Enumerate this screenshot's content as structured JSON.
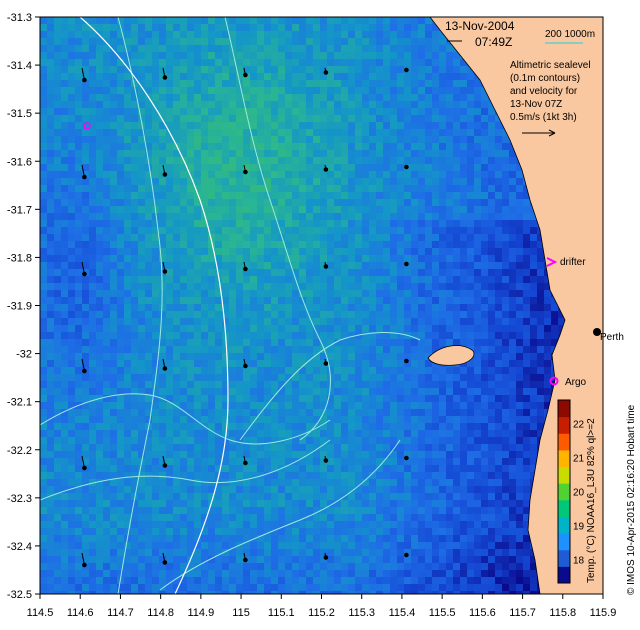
{
  "header": {
    "date": "13-Nov-2004",
    "time": "07:49Z",
    "scale_label": "200  1000m"
  },
  "legend": {
    "lines": [
      "Altimetric sealevel",
      "(0.1m contours)",
      "and velocity for",
      "13-Nov 07Z",
      "0.5m/s (1kt 3h)"
    ]
  },
  "places": {
    "drifter": "drifter",
    "perth": "Perth",
    "argo": "Argo"
  },
  "colorbar": {
    "label": "Temp. (°C) NOAA16_L3U 82% ql>=2",
    "ticks": [
      "18",
      "19",
      "20",
      "21",
      "22"
    ],
    "colors": [
      "#0a0a8c",
      "#1e5cd6",
      "#1e90ff",
      "#00b4c8",
      "#00c878",
      "#50d232",
      "#c8dc00",
      "#ffb400",
      "#ff5a00",
      "#c81e00",
      "#8c0a00"
    ]
  },
  "credit": "© IMOS 10-Apr-2015 02:16:20 Hobart time",
  "axes": {
    "x_ticks": [
      "114.5",
      "114.6",
      "114.7",
      "114.8",
      "114.9",
      "115",
      "115.1",
      "115.2",
      "115.3",
      "115.4",
      "115.5",
      "115.6",
      "115.7",
      "115.8",
      "115.9"
    ],
    "y_ticks": [
      "-31.3",
      "-31.4",
      "-31.5",
      "-31.6",
      "-31.7",
      "-31.8",
      "-31.9",
      "-32",
      "-32.1",
      "-32.2",
      "-32.3",
      "-32.4",
      "-32.5"
    ],
    "x_range": [
      114.5,
      115.9
    ],
    "y_range": [
      -32.5,
      -31.3
    ]
  },
  "colors": {
    "land": "#fac8a0",
    "contour": "#9fe8e0",
    "bathy": "#ffffff",
    "marker": "#ff00ff"
  }
}
